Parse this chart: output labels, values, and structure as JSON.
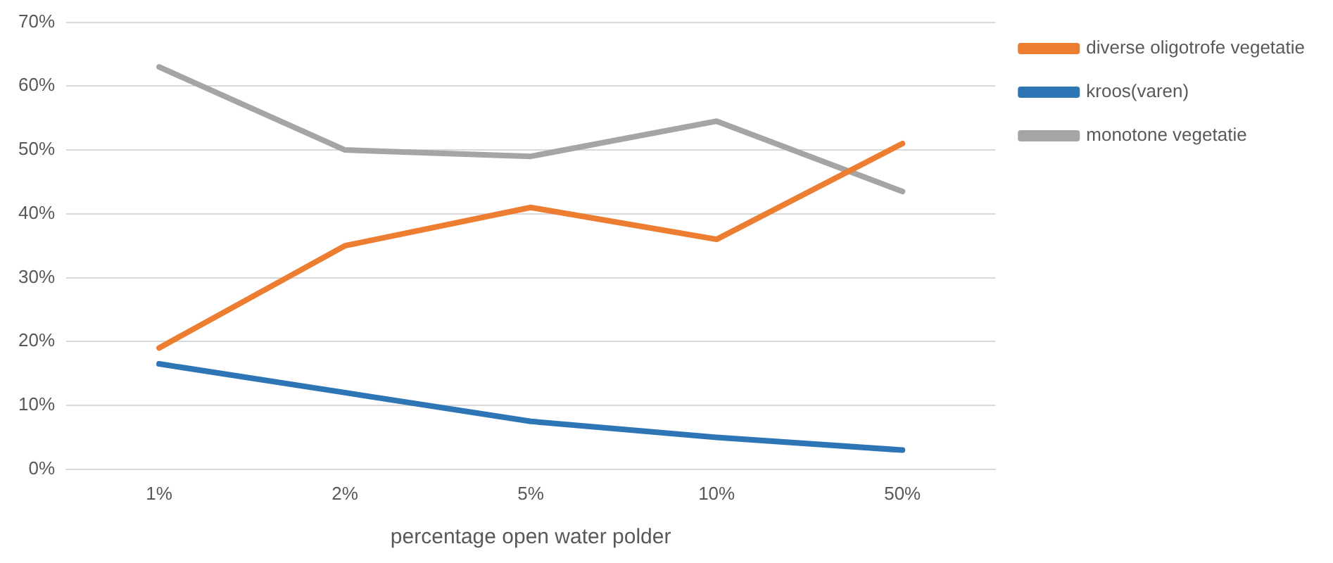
{
  "chart_data": {
    "type": "line",
    "xlabel": "percentage open water polder",
    "categories": [
      "1%",
      "2%",
      "5%",
      "10%",
      "50%"
    ],
    "series": [
      {
        "name": "diverse oligotrofe vegetatie",
        "color": "#ed7d31",
        "values": [
          19,
          35,
          41,
          36,
          51
        ]
      },
      {
        "name": "kroos(varen)",
        "color": "#2e75b6",
        "values": [
          16.5,
          12,
          7.5,
          5,
          3
        ]
      },
      {
        "name": "monotone vegetatie",
        "color": "#a5a5a5",
        "values": [
          63,
          50,
          49,
          54.5,
          43.5
        ]
      }
    ],
    "ylim": [
      0,
      70
    ],
    "yticks": [
      {
        "value": 0,
        "label": "0%"
      },
      {
        "value": 10,
        "label": "10%"
      },
      {
        "value": 20,
        "label": "20%"
      },
      {
        "value": 30,
        "label": "30%"
      },
      {
        "value": 40,
        "label": "40%"
      },
      {
        "value": 50,
        "label": "50%"
      },
      {
        "value": 60,
        "label": "60%"
      },
      {
        "value": 70,
        "label": "70%"
      }
    ],
    "grid": "y",
    "legend": "top right",
    "marker": "none",
    "line_style": "solid"
  }
}
